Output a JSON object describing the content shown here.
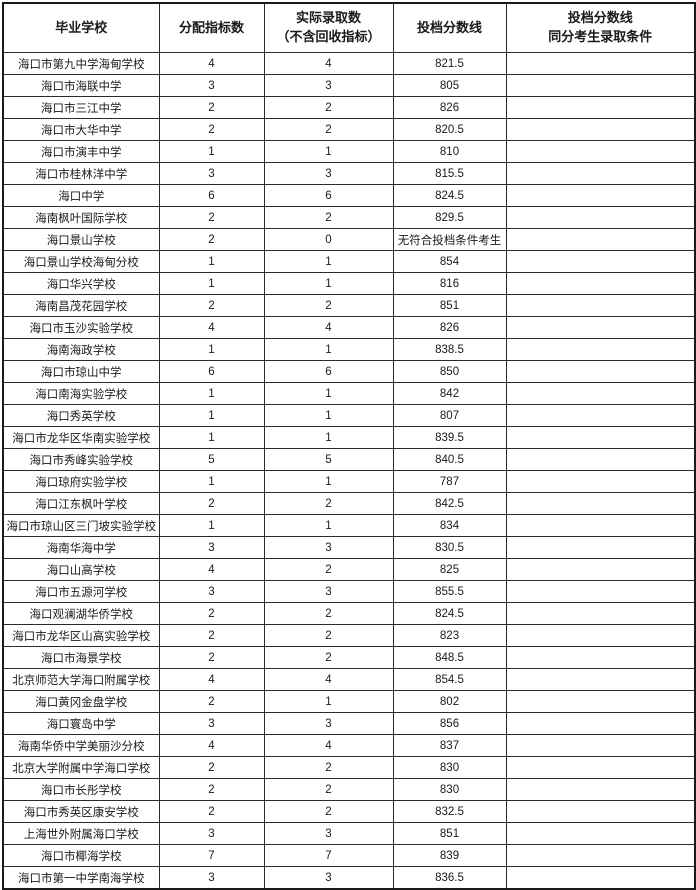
{
  "table": {
    "columns": [
      {
        "key": "school",
        "lines": [
          "毕业学校"
        ]
      },
      {
        "key": "quota",
        "lines": [
          "分配指标数"
        ]
      },
      {
        "key": "admitted",
        "lines": [
          "实际录取数",
          "（不含回收指标）"
        ]
      },
      {
        "key": "score_line",
        "lines": [
          "投档分数线"
        ]
      },
      {
        "key": "tie_condition",
        "lines": [
          "投档分数线",
          "同分考生录取条件"
        ]
      }
    ],
    "rows": [
      [
        "海口市第九中学海甸学校",
        "4",
        "4",
        "821.5",
        ""
      ],
      [
        "海口市海联中学",
        "3",
        "3",
        "805",
        ""
      ],
      [
        "海口市三江中学",
        "2",
        "2",
        "826",
        ""
      ],
      [
        "海口市大华中学",
        "2",
        "2",
        "820.5",
        ""
      ],
      [
        "海口市演丰中学",
        "1",
        "1",
        "810",
        ""
      ],
      [
        "海口市桂林洋中学",
        "3",
        "3",
        "815.5",
        ""
      ],
      [
        "海口中学",
        "6",
        "6",
        "824.5",
        ""
      ],
      [
        "海南枫叶国际学校",
        "2",
        "2",
        "829.5",
        ""
      ],
      [
        "海口景山学校",
        "2",
        "0",
        "无符合投档条件考生",
        ""
      ],
      [
        "海口景山学校海甸分校",
        "1",
        "1",
        "854",
        ""
      ],
      [
        "海口华兴学校",
        "1",
        "1",
        "816",
        ""
      ],
      [
        "海南昌茂花园学校",
        "2",
        "2",
        "851",
        ""
      ],
      [
        "海口市玉沙实验学校",
        "4",
        "4",
        "826",
        ""
      ],
      [
        "海南海政学校",
        "1",
        "1",
        "838.5",
        ""
      ],
      [
        "海口市琼山中学",
        "6",
        "6",
        "850",
        ""
      ],
      [
        "海口南海实验学校",
        "1",
        "1",
        "842",
        ""
      ],
      [
        "海口秀英学校",
        "1",
        "1",
        "807",
        ""
      ],
      [
        "海口市龙华区华南实验学校",
        "1",
        "1",
        "839.5",
        ""
      ],
      [
        "海口市秀峰实验学校",
        "5",
        "5",
        "840.5",
        ""
      ],
      [
        "海口琼府实验学校",
        "1",
        "1",
        "787",
        ""
      ],
      [
        "海口江东枫叶学校",
        "2",
        "2",
        "842.5",
        ""
      ],
      [
        "海口市琼山区三门坡实验学校",
        "1",
        "1",
        "834",
        ""
      ],
      [
        "海南华海中学",
        "3",
        "3",
        "830.5",
        ""
      ],
      [
        "海口山高学校",
        "4",
        "2",
        "825",
        ""
      ],
      [
        "海口市五源河学校",
        "3",
        "3",
        "855.5",
        ""
      ],
      [
        "海口观澜湖华侨学校",
        "2",
        "2",
        "824.5",
        ""
      ],
      [
        "海口市龙华区山高实验学校",
        "2",
        "2",
        "823",
        ""
      ],
      [
        "海口市海景学校",
        "2",
        "2",
        "848.5",
        ""
      ],
      [
        "北京师范大学海口附属学校",
        "4",
        "4",
        "854.5",
        ""
      ],
      [
        "海口黄冈金盘学校",
        "2",
        "1",
        "802",
        ""
      ],
      [
        "海口寰岛中学",
        "3",
        "3",
        "856",
        ""
      ],
      [
        "海南华侨中学美丽沙分校",
        "4",
        "4",
        "837",
        ""
      ],
      [
        "北京大学附属中学海口学校",
        "2",
        "2",
        "830",
        ""
      ],
      [
        "海口市长彤学校",
        "2",
        "2",
        "830",
        ""
      ],
      [
        "海口市秀英区康安学校",
        "2",
        "2",
        "832.5",
        ""
      ],
      [
        "上海世外附属海口学校",
        "3",
        "3",
        "851",
        ""
      ],
      [
        "海口市椰海学校",
        "7",
        "7",
        "839",
        ""
      ],
      [
        "海口市第一中学南海学校",
        "3",
        "3",
        "836.5",
        ""
      ]
    ]
  },
  "colors": {
    "border": "#2a2a2a",
    "text": "#1a1a1a",
    "background": "#ffffff"
  }
}
